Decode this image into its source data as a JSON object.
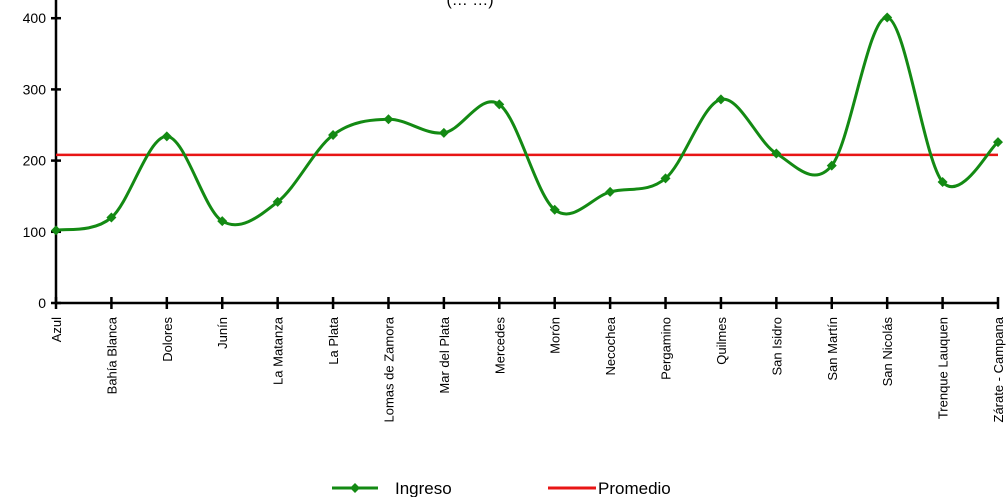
{
  "chart_data": {
    "type": "line",
    "title": "(… …)",
    "categories": [
      "Azul",
      "Bahía Blanca",
      "Dolores",
      "Junín",
      "La Matanza",
      "La Plata",
      "Lomas de Zamora",
      "Mar del Plata",
      "Mercedes",
      "Morón",
      "Necochea",
      "Pergamino",
      "Quilmes",
      "San Isidro",
      "San Martín",
      "San Nicolás",
      "Trenque Lauquen",
      "Zárate - Campana"
    ],
    "series": [
      {
        "name": "Ingreso",
        "color": "#138a13",
        "marker": "diamond",
        "values": [
          102,
          120,
          234,
          115,
          142,
          236,
          258,
          239,
          279,
          131,
          156,
          175,
          286,
          210,
          193,
          401,
          170,
          226
        ]
      },
      {
        "name": "Promedio",
        "color": "#e81515",
        "values": [
          208,
          208,
          208,
          208,
          208,
          208,
          208,
          208,
          208,
          208,
          208,
          208,
          208,
          208,
          208,
          208,
          208,
          208
        ]
      }
    ],
    "y_ticks": [
      "0",
      "100",
      "200",
      "300",
      "400"
    ],
    "ylim": [
      0,
      440
    ],
    "grid": false,
    "legend_position": "bottom"
  }
}
